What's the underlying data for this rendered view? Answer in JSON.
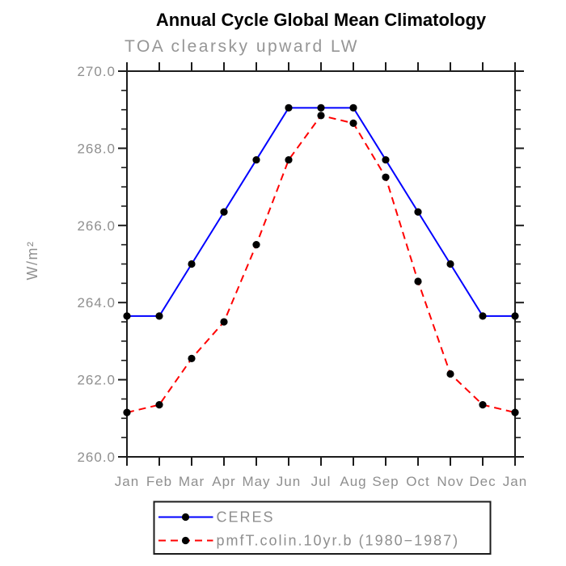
{
  "title": "Annual Cycle Global Mean Climatology",
  "subtitle": "TOA clearsky upward LW",
  "chart_data": {
    "type": "line",
    "x_categories": [
      "Jan",
      "Feb",
      "Mar",
      "Apr",
      "May",
      "Jun",
      "Jul",
      "Aug",
      "Sep",
      "Oct",
      "Nov",
      "Dec",
      "Jan"
    ],
    "ylabel": "W/m²",
    "ylim": [
      260.0,
      270.0
    ],
    "y_major_tick_step": 2.0,
    "y_minor_tick_step": 0.5,
    "y_tick_labels": [
      "260.0",
      "262.0",
      "264.0",
      "266.0",
      "268.0",
      "270.0"
    ],
    "grid": false,
    "legend_position": "bottom-center",
    "series": [
      {
        "name": "CERES",
        "line_color": "#0000ff",
        "line_style": "solid",
        "marker": "filled-circle",
        "marker_color": "#000000",
        "values": [
          263.65,
          263.65,
          265.0,
          266.35,
          267.7,
          269.05,
          269.05,
          269.05,
          267.7,
          266.35,
          265.0,
          263.65,
          263.65
        ]
      },
      {
        "name": "pmfT.colin.10yr.b (1980−1987)",
        "line_color": "#ff0000",
        "line_style": "dashed",
        "marker": "filled-circle",
        "marker_color": "#000000",
        "values": [
          261.15,
          261.35,
          262.55,
          263.5,
          265.5,
          267.7,
          268.85,
          268.65,
          267.25,
          264.55,
          262.15,
          261.35,
          261.15
        ]
      }
    ]
  },
  "colors": {
    "background": "#ffffff",
    "frame": "#1c1c1c",
    "label_gray": "#8f8f8f",
    "title_black": "#000000"
  }
}
